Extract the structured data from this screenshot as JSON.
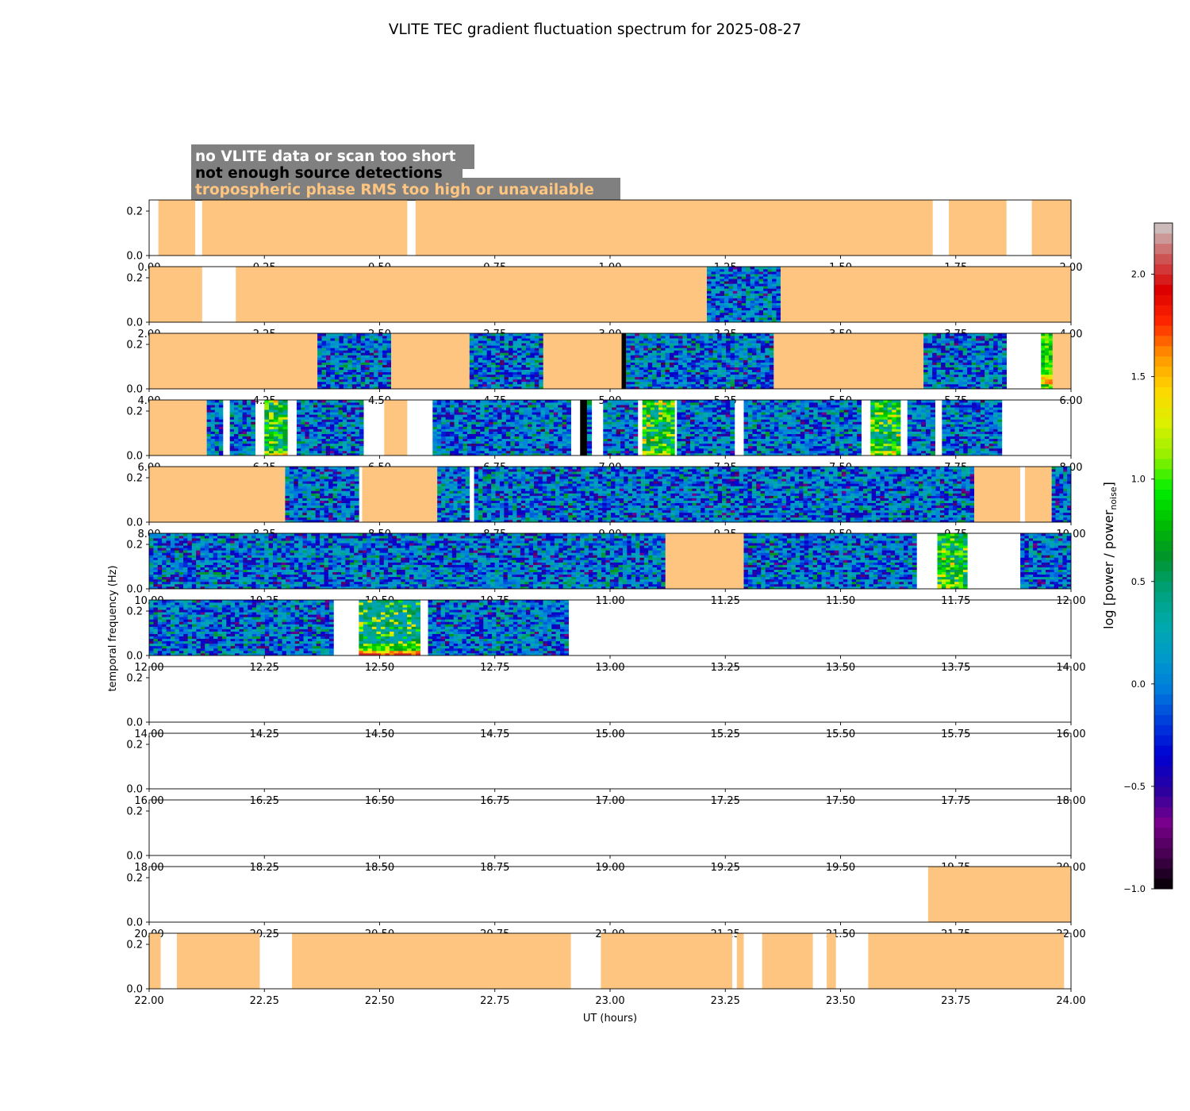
{
  "chart_data": {
    "type": "heatmap",
    "title": "VLITE TEC gradient fluctuation spectrum for 2025-08-27",
    "xlabel": "UT (hours)",
    "ylabel": "temporal frequency (Hz)",
    "ylim": [
      0,
      0.25
    ],
    "yticks": [
      0.0,
      0.2
    ],
    "ytick_labels": [
      "0.0",
      "0.2"
    ],
    "legend": {
      "position": "top-left",
      "entries": [
        {
          "label": "no VLITE data or scan too short",
          "text_color": "#ffffff",
          "bg_color": "#808080"
        },
        {
          "label": "not enough source detections",
          "text_color": "#000000",
          "bg_color": "#808080"
        },
        {
          "label": "tropospheric phase RMS too high or unavailable",
          "text_color": "#fdc580",
          "bg_color": "#808080"
        }
      ]
    },
    "colors": {
      "no_data": "#ffffff",
      "few_detections": "#000000",
      "tropo_rms": "#fdc580"
    },
    "colorbar": {
      "label_main": "log [power / power",
      "label_sub": "noise",
      "label_end": "]",
      "range": [
        -1.0,
        2.25
      ],
      "ticks": [
        -1.0,
        -0.5,
        0.0,
        0.5,
        1.0,
        1.5,
        2.0
      ],
      "tick_labels": [
        "−1.0",
        "−0.5",
        "0.0",
        "0.5",
        "1.0",
        "1.5",
        "2.0"
      ]
    },
    "panels": [
      {
        "x_range": [
          0,
          2
        ],
        "xticks": [
          "0.00",
          "0.25",
          "0.50",
          "0.75",
          "1.00",
          "1.25",
          "1.50",
          "1.75",
          "2.00"
        ],
        "segments": [
          [
            0.02,
            0.1,
            "tropo"
          ],
          [
            0.115,
            0.56,
            "tropo"
          ],
          [
            0.578,
            1.7,
            "tropo"
          ],
          [
            1.735,
            1.86,
            "tropo"
          ],
          [
            1.915,
            2.0,
            "tropo"
          ]
        ]
      },
      {
        "x_range": [
          2,
          4
        ],
        "xticks": [
          "2.00",
          "2.25",
          "2.50",
          "2.75",
          "3.00",
          "3.25",
          "3.50",
          "3.75",
          "4.00"
        ],
        "segments": [
          [
            2.0,
            2.115,
            "tropo"
          ],
          [
            2.188,
            3.21,
            "tropo"
          ],
          [
            3.21,
            3.37,
            "spec",
            0
          ],
          [
            3.37,
            4.0,
            "tropo"
          ]
        ]
      },
      {
        "x_range": [
          4,
          6
        ],
        "xticks": [
          "4.00",
          "4.25",
          "4.50",
          "4.75",
          "5.00",
          "5.25",
          "5.50",
          "5.75",
          "6.00"
        ],
        "segments": [
          [
            4.0,
            4.365,
            "tropo"
          ],
          [
            4.365,
            4.525,
            "spec",
            0
          ],
          [
            4.525,
            4.695,
            "tropo"
          ],
          [
            4.695,
            4.855,
            "spec",
            0
          ],
          [
            4.855,
            5.025,
            "tropo"
          ],
          [
            5.025,
            5.035,
            "few"
          ],
          [
            5.035,
            5.355,
            "spec",
            0
          ],
          [
            5.355,
            5.68,
            "tropo"
          ],
          [
            5.68,
            5.86,
            "spec",
            0
          ],
          [
            5.935,
            5.96,
            "spec",
            2
          ],
          [
            5.96,
            6.0,
            "tropo"
          ]
        ]
      },
      {
        "x_range": [
          6,
          8
        ],
        "xticks": [
          "6.00",
          "6.25",
          "6.50",
          "6.75",
          "7.00",
          "7.25",
          "7.50",
          "7.75",
          "8.00"
        ],
        "segments": [
          [
            6.0,
            6.125,
            "tropo"
          ],
          [
            6.125,
            6.16,
            "spec",
            0
          ],
          [
            6.175,
            6.23,
            "spec",
            0
          ],
          [
            6.25,
            6.3,
            "spec",
            1
          ],
          [
            6.32,
            6.465,
            "spec",
            0
          ],
          [
            6.51,
            6.56,
            "tropo"
          ],
          [
            6.615,
            6.915,
            "spec",
            0
          ],
          [
            6.935,
            6.95,
            "few"
          ],
          [
            6.95,
            6.96,
            "spec",
            0
          ],
          [
            6.985,
            7.06,
            "spec",
            0
          ],
          [
            7.07,
            7.14,
            "spec",
            1
          ],
          [
            7.145,
            7.27,
            "spec",
            0
          ],
          [
            7.29,
            7.545,
            "spec",
            0
          ],
          [
            7.565,
            7.63,
            "spec",
            1
          ],
          [
            7.645,
            7.705,
            "spec",
            0
          ],
          [
            7.72,
            7.85,
            "spec",
            0
          ]
        ]
      },
      {
        "x_range": [
          8,
          10
        ],
        "xticks": [
          "8.00",
          "8.25",
          "8.50",
          "8.75",
          "9.00",
          "9.25",
          "9.50",
          "9.75",
          "10.00"
        ],
        "segments": [
          [
            8.0,
            8.295,
            "tropo"
          ],
          [
            8.295,
            8.455,
            "spec",
            0
          ],
          [
            8.462,
            8.625,
            "tropo"
          ],
          [
            8.625,
            8.695,
            "spec",
            0
          ],
          [
            8.705,
            9.79,
            "spec",
            0
          ],
          [
            9.79,
            9.89,
            "tropo"
          ],
          [
            9.9,
            9.958,
            "tropo"
          ],
          [
            9.958,
            10.0,
            "spec",
            0
          ]
        ]
      },
      {
        "x_range": [
          10,
          12
        ],
        "xticks": [
          "10.00",
          "10.25",
          "10.50",
          "10.75",
          "11.00",
          "11.25",
          "11.50",
          "11.75",
          "12.00"
        ],
        "segments": [
          [
            10.0,
            11.12,
            "spec",
            0
          ],
          [
            11.12,
            11.29,
            "tropo"
          ],
          [
            11.29,
            11.665,
            "spec",
            0
          ],
          [
            11.71,
            11.775,
            "spec",
            1
          ],
          [
            11.89,
            12.0,
            "spec",
            0
          ]
        ]
      },
      {
        "x_range": [
          12,
          14
        ],
        "xticks": [
          "12.00",
          "12.25",
          "12.50",
          "12.75",
          "13.00",
          "13.25",
          "13.50",
          "13.75",
          "14.00"
        ],
        "segments": [
          [
            12.0,
            12.4,
            "spec",
            0
          ],
          [
            12.455,
            12.588,
            "spec",
            3
          ],
          [
            12.605,
            12.91,
            "spec",
            0
          ]
        ]
      },
      {
        "x_range": [
          14,
          16
        ],
        "xticks": [
          "14.00",
          "14.25",
          "14.50",
          "14.75",
          "15.00",
          "15.25",
          "15.50",
          "15.75",
          "16.00"
        ],
        "segments": []
      },
      {
        "x_range": [
          16,
          18
        ],
        "xticks": [
          "16.00",
          "16.25",
          "16.50",
          "16.75",
          "17.00",
          "17.25",
          "17.50",
          "17.75",
          "18.00"
        ],
        "segments": []
      },
      {
        "x_range": [
          18,
          20
        ],
        "xticks": [
          "18.00",
          "18.25",
          "18.50",
          "18.75",
          "19.00",
          "19.25",
          "19.50",
          "19.75",
          "20.00"
        ],
        "segments": []
      },
      {
        "x_range": [
          20,
          22
        ],
        "xticks": [
          "20.00",
          "20.25",
          "20.50",
          "20.75",
          "21.00",
          "21.25",
          "21.50",
          "21.75",
          "22.00"
        ],
        "segments": [
          [
            21.69,
            22.0,
            "tropo"
          ]
        ]
      },
      {
        "x_range": [
          22,
          24
        ],
        "xticks": [
          "22.00",
          "22.25",
          "22.50",
          "22.75",
          "23.00",
          "23.25",
          "23.50",
          "23.75",
          "24.00"
        ],
        "segments": [
          [
            22.0,
            22.025,
            "tropo"
          ],
          [
            22.06,
            22.24,
            "tropo"
          ],
          [
            22.31,
            22.915,
            "tropo"
          ],
          [
            22.98,
            23.265,
            "tropo"
          ],
          [
            23.275,
            23.29,
            "tropo"
          ],
          [
            23.33,
            23.44,
            "tropo"
          ],
          [
            23.47,
            23.49,
            "tropo"
          ],
          [
            23.56,
            23.985,
            "tropo"
          ]
        ]
      }
    ]
  }
}
